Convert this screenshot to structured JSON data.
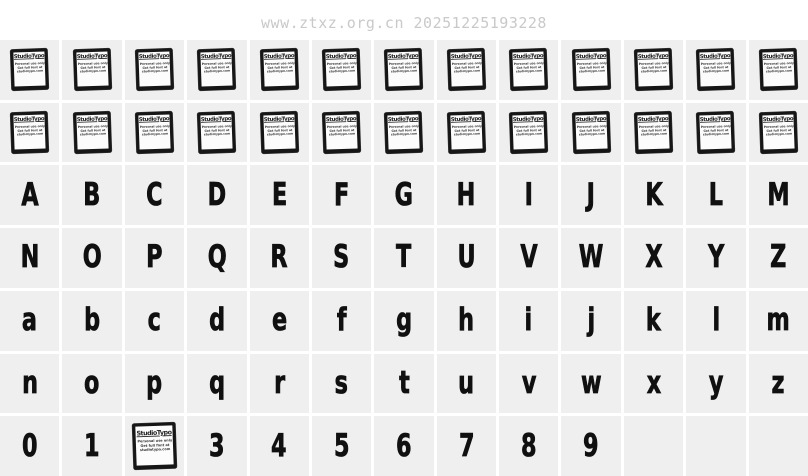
{
  "watermark": "www.ztxz.org.cn 20251225193228",
  "colors": {
    "page_bg": "#ffffff",
    "cell_bg": "#efefef",
    "gridline": "#ffffff",
    "glyph": "#101010",
    "watermark_text": "#c9c9c9",
    "notdef_border": "#161616"
  },
  "notdef_glyph": {
    "title": "StudioTypo",
    "lines": [
      "Personal use only",
      "Get full font at",
      "studiotypo.com"
    ]
  },
  "charmap": {
    "columns": 13,
    "rows": [
      {
        "name": "notdef-row-1",
        "cells": [
          "notdef",
          "notdef",
          "notdef",
          "notdef",
          "notdef",
          "notdef",
          "notdef",
          "notdef",
          "notdef",
          "notdef",
          "notdef",
          "notdef",
          "notdef"
        ]
      },
      {
        "name": "notdef-row-2",
        "cells": [
          "notdef",
          "notdef",
          "notdef",
          "notdef",
          "notdef",
          "notdef",
          "notdef",
          "notdef",
          "notdef",
          "notdef",
          "notdef",
          "notdef",
          "notdef"
        ]
      },
      {
        "name": "uppercase-a-m",
        "cells": [
          "A",
          "B",
          "C",
          "D",
          "E",
          "F",
          "G",
          "H",
          "I",
          "J",
          "K",
          "L",
          "M"
        ]
      },
      {
        "name": "uppercase-n-z",
        "cells": [
          "N",
          "O",
          "P",
          "Q",
          "R",
          "S",
          "T",
          "U",
          "V",
          "W",
          "X",
          "Y",
          "Z"
        ]
      },
      {
        "name": "lowercase-a-m",
        "cells": [
          "a",
          "b",
          "c",
          "d",
          "e",
          "f",
          "g",
          "h",
          "i",
          "j",
          "k",
          "l",
          "m"
        ]
      },
      {
        "name": "lowercase-n-z",
        "cells": [
          "n",
          "o",
          "p",
          "q",
          "r",
          "s",
          "t",
          "u",
          "v",
          "w",
          "x",
          "y",
          "z"
        ]
      },
      {
        "name": "digits",
        "cells": [
          "0",
          "1",
          "notdef",
          "3",
          "4",
          "5",
          "6",
          "7",
          "8",
          "9",
          "",
          "",
          ""
        ]
      }
    ]
  }
}
